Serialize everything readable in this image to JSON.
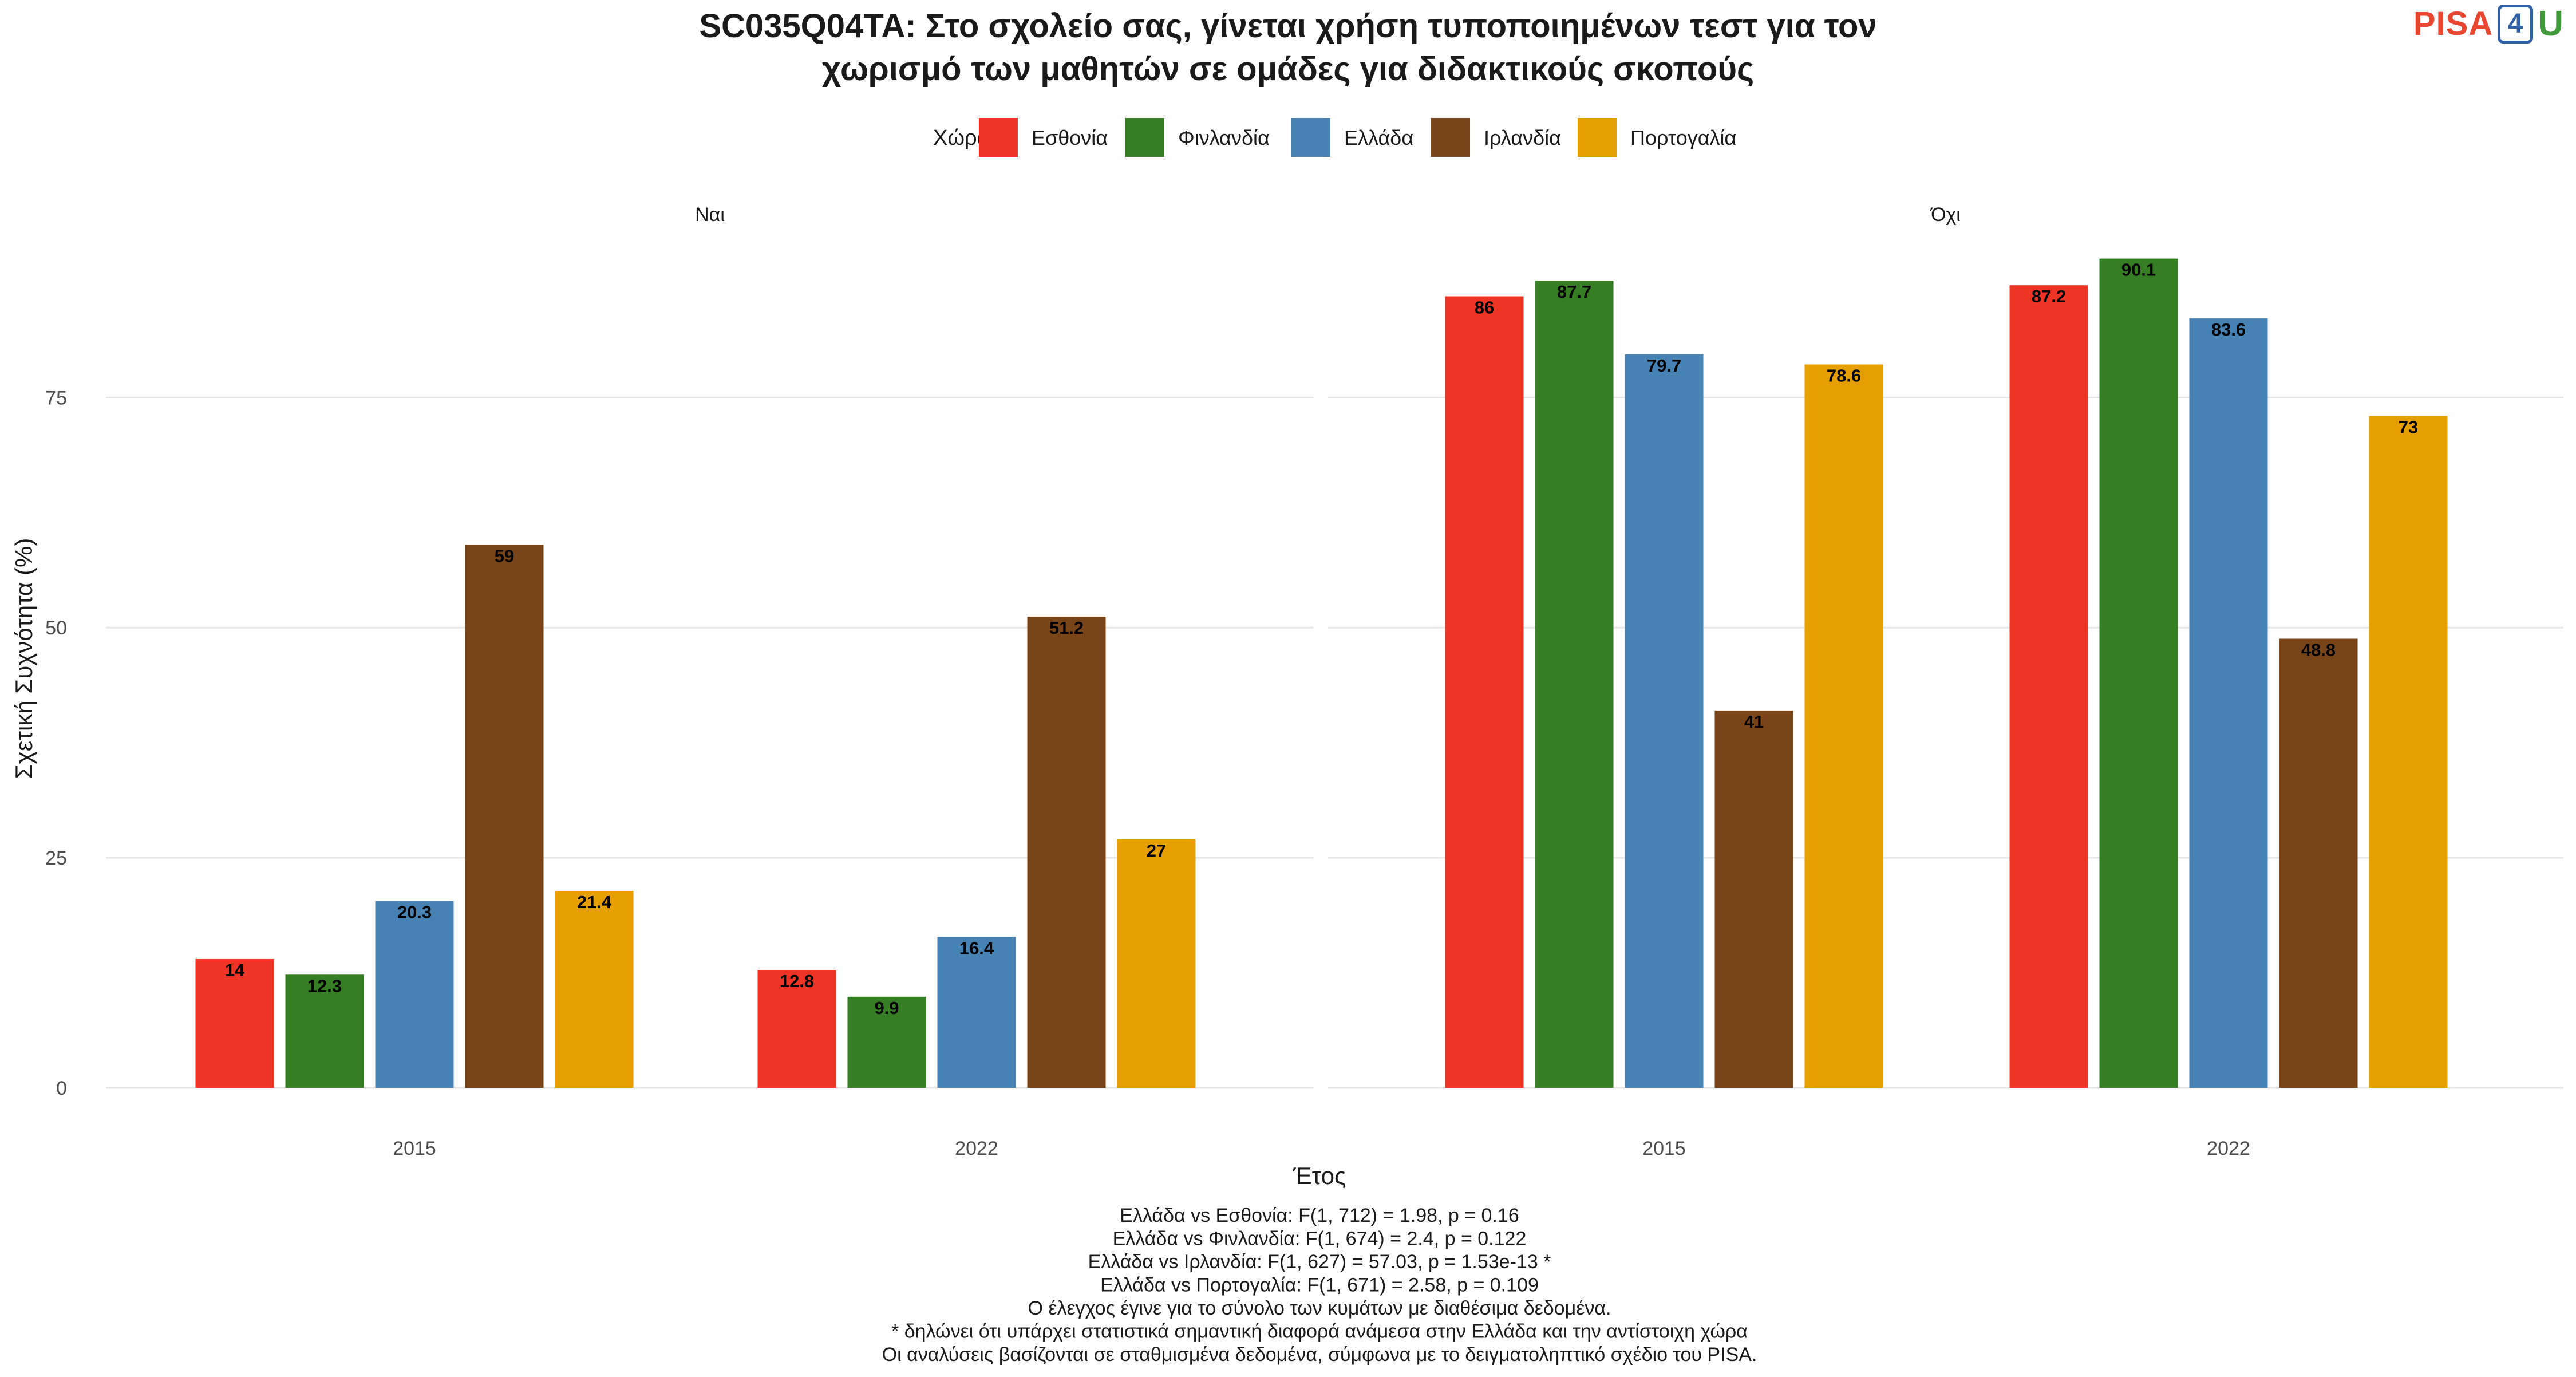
{
  "colors": {
    "Εσθονία": "#EE3424",
    "Φινλανδία": "#367E23",
    "Ελλάδα": "#4682B4",
    "Ιρλανδία": "#784418",
    "Πορτογαλία": "#E69F00",
    "grid": "#e5e5e5",
    "text": "#1a1a1a",
    "axis_text": "#4d4d4d"
  },
  "logo": {
    "text": "PISA4U",
    "pisa": "PISA",
    "four": "4",
    "u": "U"
  },
  "chart_data": {
    "type": "bar",
    "title": "SC035Q04TA: Στο σχολείο σας, γίνεται χρήση τυποποιημένων τεστ για τον",
    "title_line2": "χωρισμό των μαθητών σε ομάδες για διδακτικούς σκοπούς",
    "legend_title": "Χώρα",
    "legend_position": "top",
    "xlabel": "Έτος",
    "ylabel": "Σχετική Συχνότητα (%)",
    "ylim": [
      0,
      93
    ],
    "yticks": [
      0,
      25,
      50,
      75
    ],
    "grid": true,
    "countries": [
      "Εσθονία",
      "Φινλανδία",
      "Ελλάδα",
      "Ιρλανδία",
      "Πορτογαλία"
    ],
    "panels": [
      {
        "label": "Ναι",
        "categories": [
          "2015",
          "2022"
        ],
        "series": [
          {
            "name": "Εσθονία",
            "values": [
              14,
              12.8
            ]
          },
          {
            "name": "Φινλανδία",
            "values": [
              12.3,
              9.9
            ]
          },
          {
            "name": "Ελλάδα",
            "values": [
              20.3,
              16.4
            ]
          },
          {
            "name": "Ιρλανδία",
            "values": [
              59,
              51.2
            ]
          },
          {
            "name": "Πορτογαλία",
            "values": [
              21.4,
              27
            ]
          }
        ]
      },
      {
        "label": "Όχι",
        "categories": [
          "2015",
          "2022"
        ],
        "series": [
          {
            "name": "Εσθονία",
            "values": [
              86,
              87.2
            ]
          },
          {
            "name": "Φινλανδία",
            "values": [
              87.7,
              90.1
            ]
          },
          {
            "name": "Ελλάδα",
            "values": [
              79.7,
              83.6
            ]
          },
          {
            "name": "Ιρλανδία",
            "values": [
              41,
              48.8
            ]
          },
          {
            "name": "Πορτογαλία",
            "values": [
              78.6,
              73
            ]
          }
        ]
      }
    ],
    "caption": [
      "Ελλάδα vs Εσθονία: F(1, 712) = 1.98, p = 0.16",
      "Ελλάδα vs Φινλανδία: F(1, 674) = 2.4, p = 0.122",
      "Ελλάδα vs Ιρλανδία: F(1, 627) = 57.03, p = 1.53e-13 *",
      "Ελλάδα vs Πορτογαλία: F(1, 671) = 2.58, p = 0.109",
      "Ο έλεγχος έγινε για το σύνολο των κυμάτων με διαθέσιμα δεδομένα.",
      "* δηλώνει ότι υπάρχει στατιστικά σημαντική διαφορά ανάμεσα στην Ελλάδα και την αντίστοιχη χώρα",
      "Οι αναλύσεις βασίζονται σε σταθμισμένα δεδομένα, σύμφωνα με το δειγματοληπτικό σχέδιο του PISA."
    ]
  }
}
